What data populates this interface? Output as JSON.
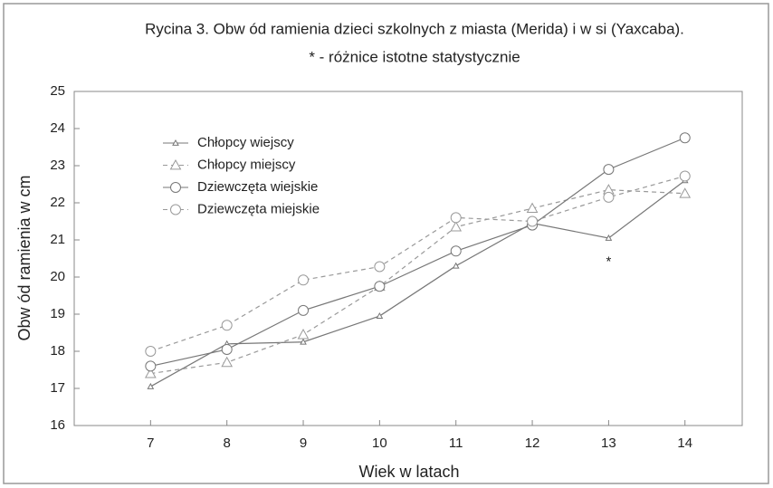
{
  "chart_data": {
    "type": "line",
    "title": "Rycina 3. Obw ód ramienia dzieci szkolnych z miasta (Merida) i  w si (Yaxcaba).",
    "subtitle": "* - różnice istotne statystycznie",
    "x_label": "Wiek w  latach",
    "y_label": "Obw ód ramienia w  cm",
    "x": [
      7,
      8,
      9,
      10,
      11,
      12,
      13,
      14
    ],
    "series": [
      {
        "name": "Chłopcy wiejscy",
        "color": "#777777",
        "line_style": "solid",
        "marker": "small-triangle",
        "values": [
          17.05,
          18.2,
          18.25,
          18.95,
          20.3,
          21.45,
          21.05,
          22.6
        ]
      },
      {
        "name": "Chłopcy miejscy",
        "color": "#999999",
        "line_style": "dashed",
        "marker": "triangle",
        "values": [
          17.4,
          17.7,
          18.45,
          19.75,
          21.35,
          21.85,
          22.35,
          22.25
        ]
      },
      {
        "name": "Dziewczęta wiejskie",
        "color": "#777777",
        "line_style": "solid",
        "marker": "circle",
        "values": [
          17.6,
          18.05,
          19.1,
          19.75,
          20.7,
          21.4,
          22.9,
          23.75
        ]
      },
      {
        "name": "Dziewczęta miejskie",
        "color": "#999999",
        "line_style": "dashed",
        "marker": "circle",
        "values": [
          18.0,
          18.7,
          19.92,
          20.28,
          21.6,
          21.5,
          22.15,
          22.72
        ]
      }
    ],
    "annotations": [
      {
        "text": "*",
        "x": 13,
        "y": 20.4
      }
    ],
    "xlim": [
      6,
      14.75
    ],
    "xticks": [
      7,
      8,
      9,
      10,
      11,
      12,
      13,
      14
    ],
    "ylim": [
      16,
      25
    ],
    "yticks": [
      16,
      17,
      18,
      19,
      20,
      21,
      22,
      23,
      24,
      25
    ],
    "grid": false,
    "legend": "upper-left"
  }
}
